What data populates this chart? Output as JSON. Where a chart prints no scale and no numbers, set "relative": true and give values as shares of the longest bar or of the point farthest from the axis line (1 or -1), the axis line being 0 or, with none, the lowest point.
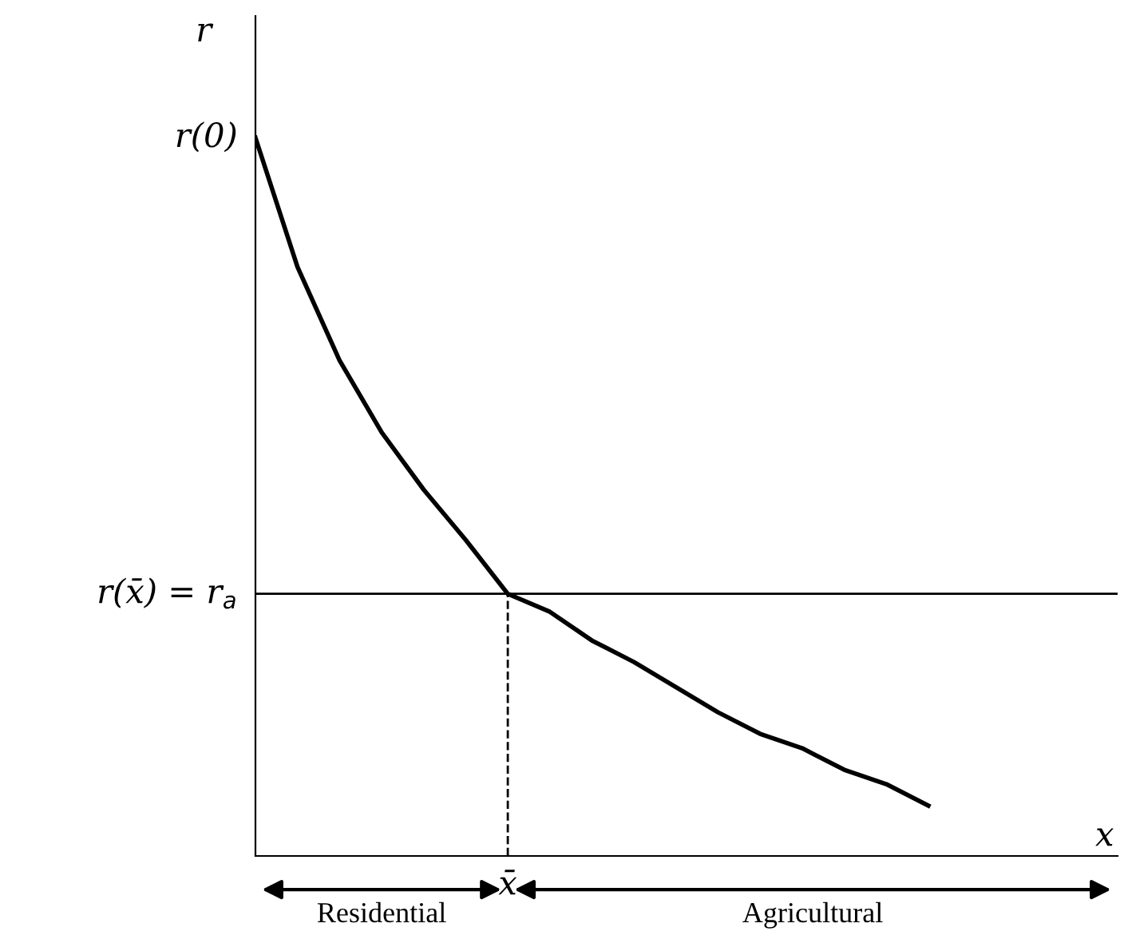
{
  "chart_data": {
    "type": "line",
    "relative": true,
    "xlabel": "x",
    "ylabel": "r",
    "categories": [
      null,
      null,
      null,
      null,
      null,
      null,
      null,
      null,
      null,
      null,
      null,
      null,
      null,
      null,
      null,
      null,
      null,
      null,
      null,
      null,
      null
    ],
    "series": [
      {
        "color": "#000000",
        "values": [
          1.0,
          0.82,
          0.69,
          0.59,
          0.51,
          0.44,
          0.365,
          0.34,
          0.3,
          0.27,
          0.235,
          0.2,
          0.17,
          0.15,
          0.12,
          0.1,
          0.07,
          null,
          null,
          null,
          null
        ]
      }
    ],
    "ref_lines": [
      {
        "axis": "y",
        "value": 0.365,
        "label": "r(x̄) = r$_{a}$",
        "color": "#000000",
        "line_style": "solid"
      }
    ],
    "annotations": [
      "r(0)",
      {
        "text": "x̄",
        "y": 0.365
      },
      "Residential",
      "Agricultural"
    ],
    "marker": "none",
    "line_style": "solid"
  }
}
